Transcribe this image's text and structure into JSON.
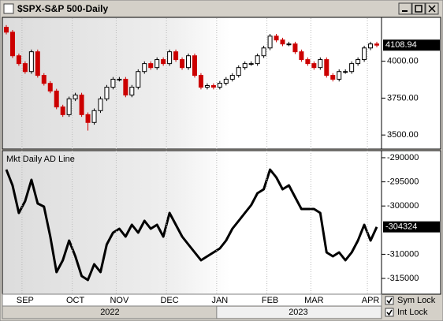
{
  "chart_data": [
    {
      "type": "candlestick",
      "title": "$SPX-S&P 500-Daily",
      "categories": [
        null,
        null,
        null,
        "SEP",
        null,
        null,
        null,
        null,
        null,
        null,
        null,
        "OCT",
        null,
        null,
        null,
        null,
        null,
        null,
        "NOV",
        null,
        null,
        null,
        null,
        null,
        null,
        null,
        "DEC",
        null,
        null,
        null,
        null,
        null,
        null,
        null,
        "JAN",
        null,
        null,
        null,
        null,
        null,
        null,
        null,
        "FEB",
        null,
        null,
        null,
        null,
        null,
        null,
        "MAR",
        null,
        null,
        null,
        null,
        null,
        null,
        null,
        null,
        "APR",
        null
      ],
      "years": [
        "2022",
        "2023"
      ],
      "open": [
        4230,
        4197,
        4037,
        3984,
        3930,
        4064,
        3904,
        3850,
        3798,
        3690,
        3638,
        3745,
        3771,
        3638,
        3585,
        3665,
        3745,
        3824,
        3878,
        3878,
        3771,
        3824,
        3930,
        3984,
        3957,
        4011,
        3984,
        4064,
        4011,
        3957,
        4037,
        3904,
        3824,
        3835,
        3824,
        3851,
        3878,
        3904,
        3957,
        3984,
        3984,
        4037,
        4090,
        4170,
        4144,
        4117,
        4117,
        4064,
        4011,
        3984,
        3957,
        4011,
        3904,
        3878,
        3930,
        3930,
        3984,
        4011,
        4090,
        4117
      ],
      "high": [
        4245,
        4212,
        4052,
        3999,
        4079,
        4079,
        3919,
        3865,
        3813,
        3705,
        3760,
        3786,
        3786,
        3653,
        3680,
        3760,
        3839,
        3893,
        3893,
        3893,
        3839,
        3945,
        3999,
        3999,
        4026,
        4026,
        4079,
        4079,
        4026,
        4052,
        4052,
        3919,
        3850,
        3850,
        3866,
        3893,
        3919,
        3972,
        3999,
        3999,
        4052,
        4105,
        4185,
        4185,
        4159,
        4132,
        4132,
        4079,
        4026,
        3999,
        4026,
        4026,
        3919,
        3945,
        3945,
        3999,
        4026,
        4105,
        4132,
        4132
      ],
      "low": [
        4182,
        4022,
        3969,
        3915,
        3915,
        3889,
        3835,
        3783,
        3675,
        3623,
        3623,
        3730,
        3623,
        3530,
        3570,
        3650,
        3730,
        3809,
        3863,
        3756,
        3756,
        3809,
        3915,
        3942,
        3942,
        3969,
        3969,
        3996,
        3942,
        3942,
        3889,
        3809,
        3809,
        3809,
        3809,
        3836,
        3863,
        3889,
        3942,
        3969,
        3969,
        4022,
        4075,
        4129,
        4102,
        4102,
        4049,
        3996,
        3969,
        3942,
        3942,
        3889,
        3863,
        3863,
        3915,
        3915,
        3969,
        3996,
        4075,
        4094
      ],
      "close": [
        4197,
        4037,
        3984,
        3930,
        4064,
        3904,
        3850,
        3798,
        3690,
        3638,
        3745,
        3771,
        3638,
        3585,
        3665,
        3745,
        3824,
        3878,
        3878,
        3771,
        3824,
        3930,
        3984,
        3957,
        4011,
        3984,
        4064,
        4011,
        3957,
        4037,
        3904,
        3824,
        3835,
        3824,
        3851,
        3878,
        3904,
        3957,
        3984,
        3984,
        4037,
        4090,
        4170,
        4144,
        4117,
        4117,
        4064,
        4011,
        3984,
        3957,
        4011,
        3904,
        3878,
        3930,
        3930,
        3984,
        4011,
        4090,
        4117,
        4108.94
      ],
      "last_value": 4108.94,
      "up_color": "#000000",
      "down_color": "#cc0000",
      "ylim": [
        3410,
        4292
      ],
      "yticks": [
        {
          "value": 3500,
          "label": "3500.00"
        },
        {
          "value": 3750,
          "label": "3750.00"
        },
        {
          "value": 4000,
          "label": "4000.00"
        }
      ]
    },
    {
      "type": "line",
      "title": "Mkt Daily AD Line",
      "values": [
        -292450,
        -295720,
        -301440,
        -298990,
        -294580,
        -299480,
        -300130,
        -306340,
        -313690,
        -311240,
        -307160,
        -310430,
        -314510,
        -315330,
        -312060,
        -313690,
        -307970,
        -305520,
        -304710,
        -306340,
        -303890,
        -305520,
        -303070,
        -304710,
        -303890,
        -306340,
        -301440,
        -303890,
        -306340,
        -307970,
        -309610,
        -311240,
        -310430,
        -309610,
        -308790,
        -307160,
        -304710,
        -303070,
        -301440,
        -299800,
        -297350,
        -296540,
        -292450,
        -294090,
        -296540,
        -295720,
        -298170,
        -300620,
        -300620,
        -300620,
        -301440,
        -309610,
        -310430,
        -309610,
        -311240,
        -309610,
        -307160,
        -303890,
        -307160,
        -304324
      ],
      "last_value": -304324,
      "color": "#000000",
      "ylim": [
        -318100,
        -288700
      ],
      "yticks": [
        -315000,
        -310000,
        -300000,
        -295000,
        -290000
      ]
    }
  ],
  "controls": [
    "Sym Lock",
    "Int Lock"
  ]
}
